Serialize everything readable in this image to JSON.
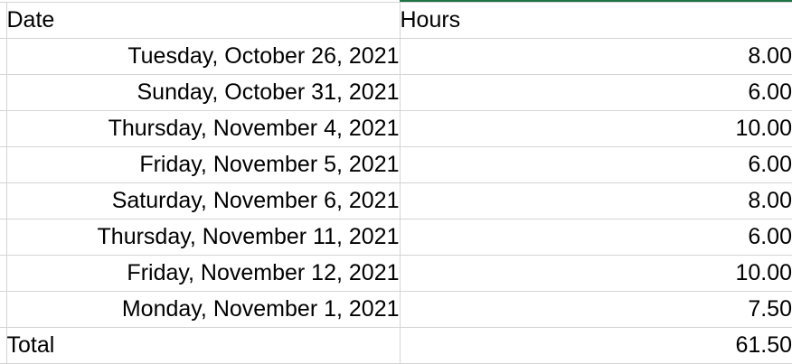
{
  "sheet": {
    "header": {
      "date": "Date",
      "hours": "Hours"
    },
    "rows": [
      {
        "date": "Tuesday, October 26, 2021",
        "hours": "8.00"
      },
      {
        "date": "Sunday, October 31, 2021",
        "hours": "6.00"
      },
      {
        "date": "Thursday, November 4, 2021",
        "hours": "10.00"
      },
      {
        "date": "Friday, November 5, 2021",
        "hours": "6.00"
      },
      {
        "date": "Saturday, November 6, 2021",
        "hours": "8.00"
      },
      {
        "date": "Thursday, November 11, 2021",
        "hours": "6.00"
      },
      {
        "date": "Friday, November 12, 2021",
        "hours": "10.00"
      },
      {
        "date": "Monday, November 1, 2021",
        "hours": "7.50"
      }
    ],
    "total": {
      "label": "Total",
      "hours": "61.50"
    }
  },
  "colors": {
    "accent": "#217346",
    "gridline": "#d4d4d4"
  }
}
